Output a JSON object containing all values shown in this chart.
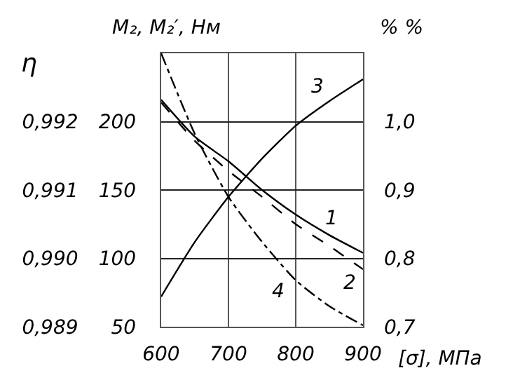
{
  "chart_data": {
    "type": "line",
    "xlabel": "[σ], МПа",
    "ylabel": "M₂, M₂′, Нм",
    "y2label": "η",
    "y3label": "% %",
    "x": [
      600,
      650,
      700,
      750,
      800,
      850,
      900
    ],
    "series": [
      {
        "name": "1",
        "color": "#000000",
        "line_style": "solid",
        "values": [
          216,
          189,
          171,
          150,
          132,
          117,
          104
        ]
      },
      {
        "name": "2",
        "color": "#000000",
        "line_style": "dashed",
        "values": [
          214,
          186,
          164,
          145,
          125,
          109,
          92
        ]
      },
      {
        "name": "3",
        "color": "#000000",
        "line_style": "solid",
        "values": [
          72,
          112,
          145,
          173,
          197,
          215,
          231
        ]
      },
      {
        "name": "4",
        "color": "#000000",
        "line_style": "dashdot",
        "values": [
          250,
          191,
          145,
          112,
          84,
          65,
          51
        ]
      }
    ],
    "xlim": [
      600,
      900
    ],
    "xticks": [
      600,
      700,
      800,
      900
    ],
    "ylim": [
      50,
      250
    ],
    "yticks": [
      50,
      100,
      150,
      200
    ],
    "y2lim": [
      0.989,
      0.993
    ],
    "y2ticks": [
      {
        "value": 0.989,
        "label": "0,989"
      },
      {
        "value": 0.99,
        "label": "0,990"
      },
      {
        "value": 0.991,
        "label": "0,991"
      },
      {
        "value": 0.992,
        "label": "0,992"
      }
    ],
    "y3lim": [
      0.7,
      1.1
    ],
    "y3ticks": [
      {
        "value": 0.7,
        "label": "0,7"
      },
      {
        "value": 0.8,
        "label": "0,8"
      },
      {
        "value": 0.9,
        "label": "0,9"
      },
      {
        "value": 1.0,
        "label": "1,0"
      }
    ],
    "grid": true,
    "legend": false,
    "marker": "none"
  }
}
